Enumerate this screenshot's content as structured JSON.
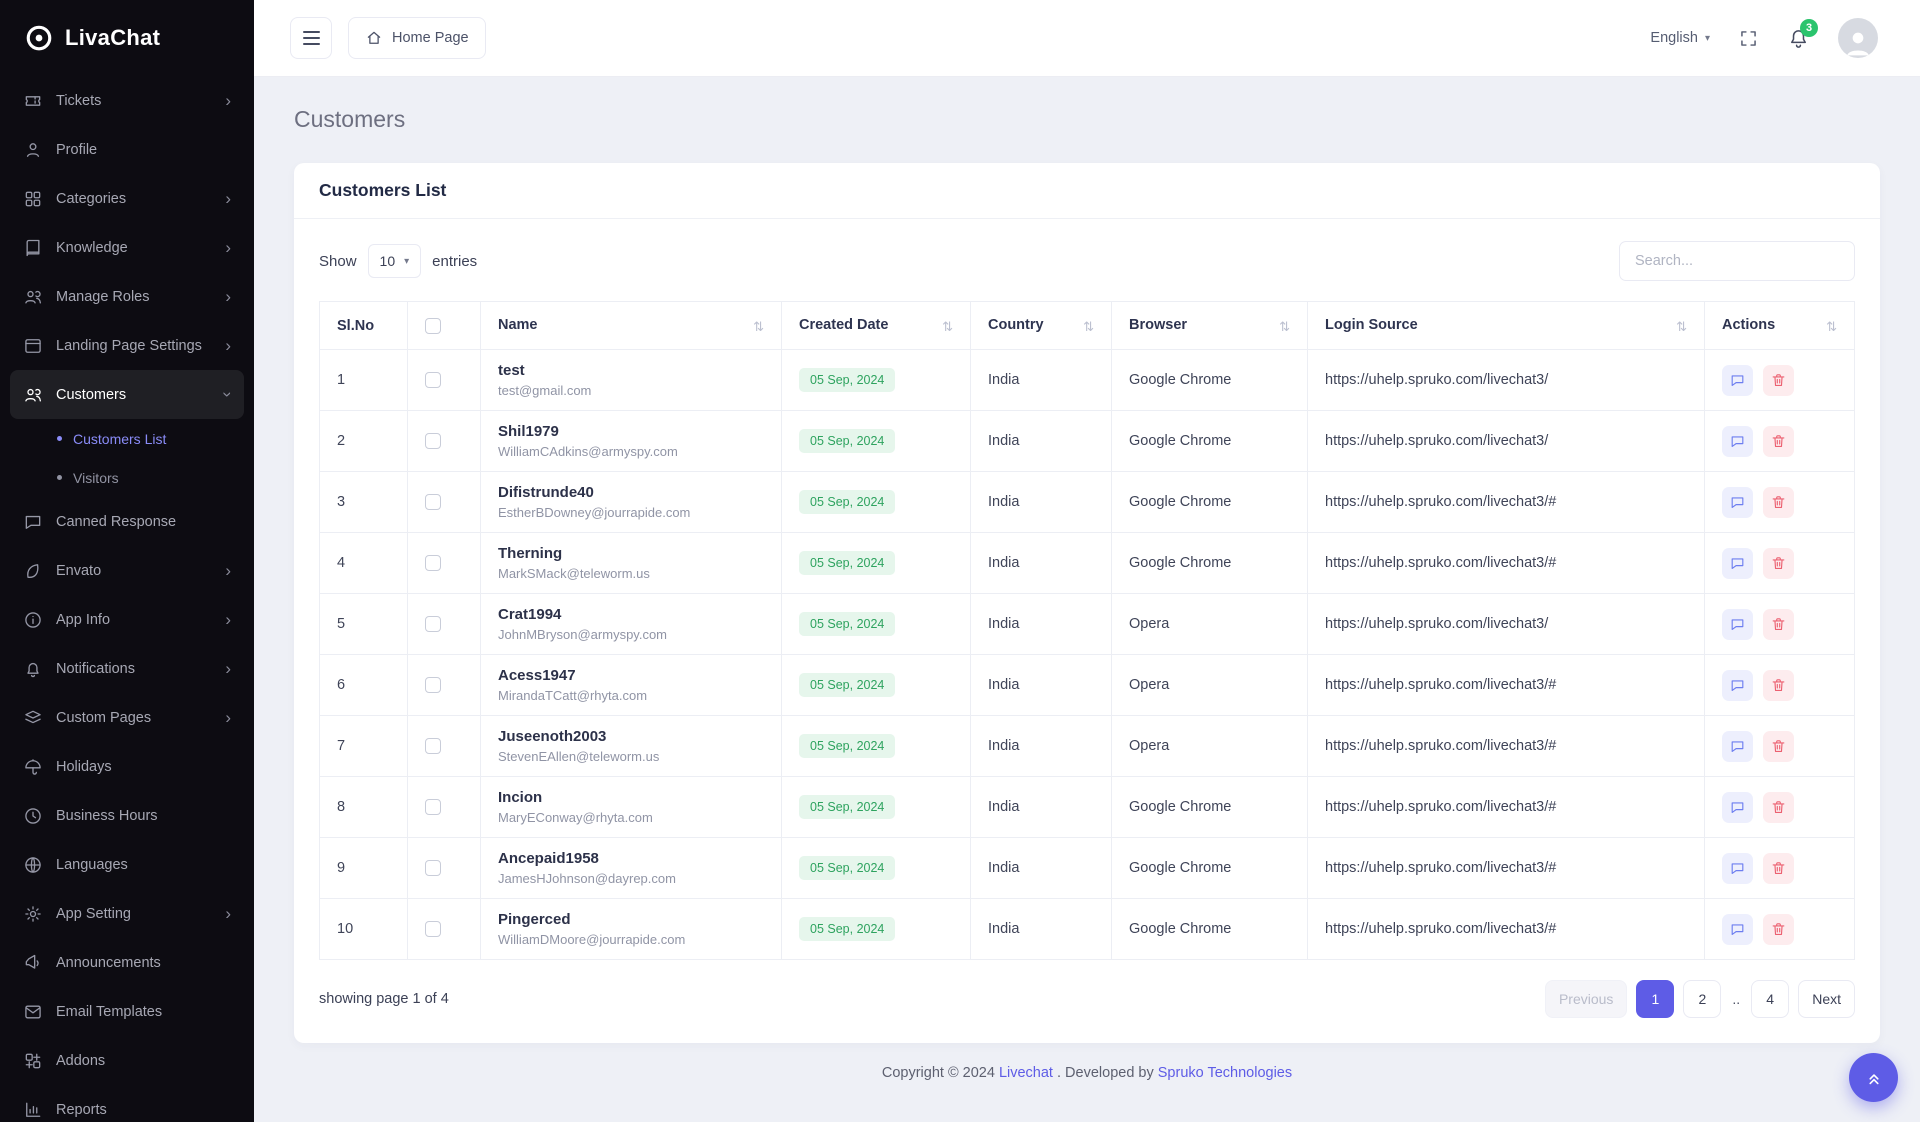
{
  "colors": {
    "primary": "#5e5ce6",
    "badge-green": "#2bc46d",
    "success-text": "#2ea35f",
    "success-bg": "#e6f6ec",
    "danger": "#ec6070",
    "chat-action": "#6d7ef0",
    "sidebar-bg": "#0d0c12"
  },
  "brand": {
    "name": "LivaChat"
  },
  "header": {
    "home_button": "Home Page",
    "language": "English",
    "notification_count": "3"
  },
  "page": {
    "title": "Customers"
  },
  "sidebar": {
    "items": [
      {
        "label": "Tickets",
        "icon": "ticket-icon",
        "chevron": "right"
      },
      {
        "label": "Profile",
        "icon": "user-icon"
      },
      {
        "label": "Categories",
        "icon": "categories-icon",
        "chevron": "right"
      },
      {
        "label": "Knowledge",
        "icon": "knowledge-icon",
        "chevron": "right"
      },
      {
        "label": "Manage Roles",
        "icon": "roles-icon",
        "chevron": "right"
      },
      {
        "label": "Landing Page Settings",
        "icon": "landing-page-icon",
        "chevron": "right"
      },
      {
        "label": "Customers",
        "icon": "customers-icon",
        "chevron": "down",
        "active": true,
        "children": [
          {
            "label": "Customers List",
            "active": true
          },
          {
            "label": "Visitors"
          }
        ]
      },
      {
        "label": "Canned Response",
        "icon": "canned-response-icon"
      },
      {
        "label": "Envato",
        "icon": "envato-icon",
        "chevron": "right"
      },
      {
        "label": "App Info",
        "icon": "app-info-icon",
        "chevron": "right"
      },
      {
        "label": "Notifications",
        "icon": "notifications-icon",
        "chevron": "right"
      },
      {
        "label": "Custom Pages",
        "icon": "custom-pages-icon",
        "chevron": "right"
      },
      {
        "label": "Holidays",
        "icon": "holidays-icon"
      },
      {
        "label": "Business Hours",
        "icon": "business-hours-icon"
      },
      {
        "label": "Languages",
        "icon": "languages-icon"
      },
      {
        "label": "App Setting",
        "icon": "app-setting-icon",
        "chevron": "right"
      },
      {
        "label": "Announcements",
        "icon": "announcements-icon"
      },
      {
        "label": "Email Templates",
        "icon": "email-templates-icon"
      },
      {
        "label": "Addons",
        "icon": "addons-icon"
      },
      {
        "label": "Reports",
        "icon": "reports-icon"
      }
    ]
  },
  "card": {
    "title": "Customers List",
    "show_label": "Show",
    "page_size": "10",
    "entries_label": "entries",
    "search_placeholder": "Search...",
    "table": {
      "columns": [
        {
          "label": "Sl.No",
          "sortable": false
        },
        {
          "label": "",
          "checkbox": true
        },
        {
          "label": "Name",
          "sortable": true
        },
        {
          "label": "Created Date",
          "sortable": true
        },
        {
          "label": "Country",
          "sortable": true
        },
        {
          "label": "Browser",
          "sortable": true
        },
        {
          "label": "Login Source",
          "sortable": true
        },
        {
          "label": "Actions",
          "sortable": true
        }
      ],
      "rows": [
        {
          "no": "1",
          "name": "test",
          "email": "test@gmail.com",
          "date": "05 Sep, 2024",
          "country": "India",
          "browser": "Google Chrome",
          "source": "https://uhelp.spruko.com/livechat3/"
        },
        {
          "no": "2",
          "name": "Shil1979",
          "email": "WilliamCAdkins@armyspy.com",
          "date": "05 Sep, 2024",
          "country": "India",
          "browser": "Google Chrome",
          "source": "https://uhelp.spruko.com/livechat3/"
        },
        {
          "no": "3",
          "name": "Difistrunde40",
          "email": "EstherBDowney@jourrapide.com",
          "date": "05 Sep, 2024",
          "country": "India",
          "browser": "Google Chrome",
          "source": "https://uhelp.spruko.com/livechat3/#"
        },
        {
          "no": "4",
          "name": "Therning",
          "email": "MarkSMack@teleworm.us",
          "date": "05 Sep, 2024",
          "country": "India",
          "browser": "Google Chrome",
          "source": "https://uhelp.spruko.com/livechat3/#"
        },
        {
          "no": "5",
          "name": "Crat1994",
          "email": "JohnMBryson@armyspy.com",
          "date": "05 Sep, 2024",
          "country": "India",
          "browser": "Opera",
          "source": "https://uhelp.spruko.com/livechat3/"
        },
        {
          "no": "6",
          "name": "Acess1947",
          "email": "MirandaTCatt@rhyta.com",
          "date": "05 Sep, 2024",
          "country": "India",
          "browser": "Opera",
          "source": "https://uhelp.spruko.com/livechat3/#"
        },
        {
          "no": "7",
          "name": "Juseenoth2003",
          "email": "StevenEAllen@teleworm.us",
          "date": "05 Sep, 2024",
          "country": "India",
          "browser": "Opera",
          "source": "https://uhelp.spruko.com/livechat3/#"
        },
        {
          "no": "8",
          "name": "Incion",
          "email": "MaryEConway@rhyta.com",
          "date": "05 Sep, 2024",
          "country": "India",
          "browser": "Google Chrome",
          "source": "https://uhelp.spruko.com/livechat3/#"
        },
        {
          "no": "9",
          "name": "Ancepaid1958",
          "email": "JamesHJohnson@dayrep.com",
          "date": "05 Sep, 2024",
          "country": "India",
          "browser": "Google Chrome",
          "source": "https://uhelp.spruko.com/livechat3/#"
        },
        {
          "no": "10",
          "name": "Pingerced",
          "email": "WilliamDMoore@jourrapide.com",
          "date": "05 Sep, 2024",
          "country": "India",
          "browser": "Google Chrome",
          "source": "https://uhelp.spruko.com/livechat3/#"
        }
      ]
    },
    "footer": {
      "showing": "showing page 1 of 4",
      "pagination": [
        {
          "label": "Previous",
          "type": "prev",
          "disabled": true
        },
        {
          "label": "1",
          "type": "page",
          "active": true
        },
        {
          "label": "2",
          "type": "page"
        },
        {
          "label": "..",
          "type": "ellipsis"
        },
        {
          "label": "4",
          "type": "page"
        },
        {
          "label": "Next",
          "type": "next"
        }
      ]
    }
  },
  "footer": {
    "prefix": "Copyright © 2024",
    "brand": "Livechat",
    "middle": ". Developed by",
    "company": "Spruko Technologies"
  }
}
